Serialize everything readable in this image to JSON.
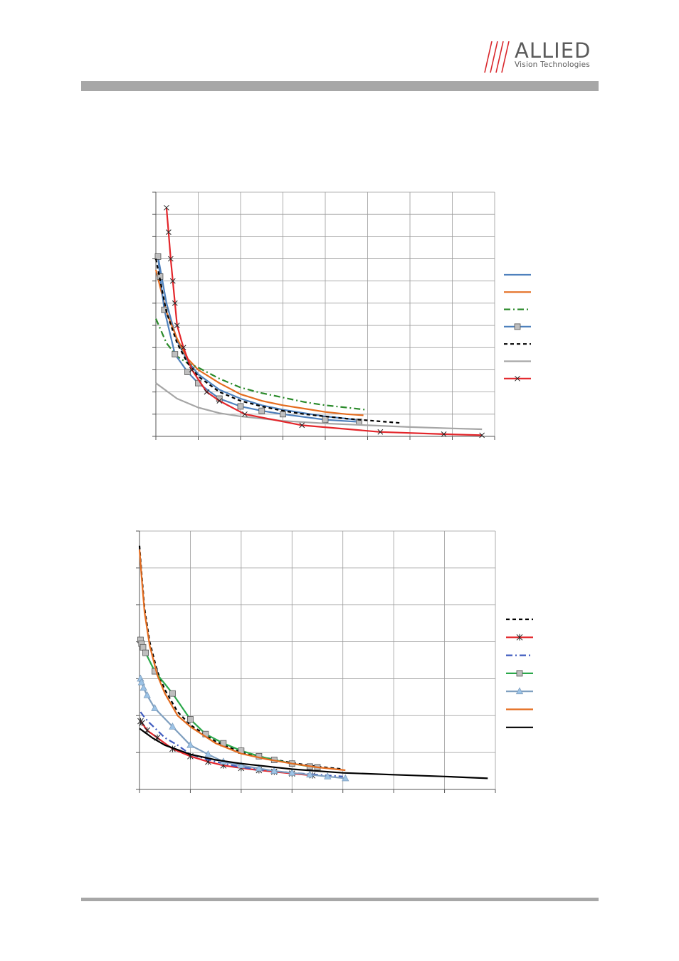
{
  "header": {
    "brand_name": "ALLIED",
    "brand_tagline": "Vision Technologies",
    "colors": {
      "brand_gray": "#5b5b5b",
      "logo_red": "#d9262b",
      "rule_gray": "#a7a7a7"
    }
  },
  "chart_data": [
    {
      "type": "line",
      "grid": true,
      "legend": "right",
      "xlim": [
        0,
        8
      ],
      "ylim": [
        0,
        11
      ],
      "series": [
        {
          "color": "#4f81bd",
          "line": "solid",
          "marker": "none",
          "x": [
            0.05,
            0.25,
            0.5,
            0.75,
            1.0,
            1.5,
            2.0,
            2.5,
            3.0,
            3.5,
            4.0,
            4.5,
            4.85
          ],
          "y": [
            8.1,
            6.0,
            4.3,
            3.4,
            2.8,
            2.1,
            1.7,
            1.4,
            1.2,
            1.05,
            0.9,
            0.8,
            0.72
          ]
        },
        {
          "color": "#e46c1f",
          "line": "solid",
          "marker": "none",
          "x": [
            0.0,
            0.25,
            0.5,
            0.75,
            1.0,
            1.5,
            2.0,
            2.5,
            3.0,
            3.5,
            4.0,
            4.5,
            4.9
          ],
          "y": [
            7.5,
            5.6,
            4.4,
            3.5,
            3.0,
            2.4,
            1.9,
            1.6,
            1.4,
            1.25,
            1.1,
            1.0,
            0.95
          ]
        },
        {
          "color": "#2a8a2a",
          "line": "dashdot",
          "marker": "none",
          "x": [
            0.0,
            0.25,
            0.5,
            0.75,
            1.0,
            1.5,
            2.0,
            2.5,
            3.0,
            3.5,
            4.0,
            4.5,
            4.95
          ],
          "y": [
            5.3,
            4.2,
            3.6,
            3.3,
            3.1,
            2.6,
            2.2,
            1.95,
            1.75,
            1.55,
            1.4,
            1.3,
            1.2
          ]
        },
        {
          "color": "#4f81bd",
          "line": "solid",
          "marker": "square",
          "x": [
            0.05,
            0.1,
            0.2,
            0.45,
            0.75,
            1.0,
            1.5,
            2.0,
            2.5,
            3.0,
            4.0,
            4.8
          ],
          "y": [
            8.1,
            7.2,
            5.7,
            3.7,
            2.9,
            2.4,
            1.7,
            1.35,
            1.15,
            1.0,
            0.75,
            0.65
          ]
        },
        {
          "color": "#000000",
          "line": "dashed",
          "marker": "none",
          "x": [
            0.0,
            0.25,
            0.5,
            0.75,
            1.0,
            1.5,
            2.0,
            2.5,
            3.0,
            3.5,
            4.0,
            4.5,
            5.0,
            5.8
          ],
          "y": [
            8.0,
            5.6,
            4.2,
            3.3,
            2.7,
            2.0,
            1.6,
            1.35,
            1.15,
            1.0,
            0.9,
            0.8,
            0.72,
            0.6
          ]
        },
        {
          "color": "#a6a6a6",
          "line": "solid",
          "marker": "none",
          "x": [
            0.0,
            0.5,
            1.0,
            1.5,
            2.0,
            3.0,
            4.0,
            5.0,
            6.0,
            7.0,
            7.7
          ],
          "y": [
            2.4,
            1.7,
            1.3,
            1.05,
            0.9,
            0.7,
            0.58,
            0.5,
            0.42,
            0.36,
            0.32
          ]
        },
        {
          "color": "#e3262b",
          "line": "solid",
          "marker": "x",
          "x": [
            0.25,
            0.3,
            0.35,
            0.4,
            0.45,
            0.5,
            0.65,
            0.85,
            1.2,
            1.5,
            2.1,
            3.45,
            5.3,
            6.8,
            7.7
          ],
          "y": [
            10.3,
            9.2,
            8.0,
            7.0,
            6.0,
            5.0,
            4.0,
            3.0,
            2.0,
            1.6,
            1.0,
            0.5,
            0.2,
            0.1,
            0.05
          ]
        }
      ]
    },
    {
      "type": "line",
      "grid": true,
      "legend": "right",
      "xlim": [
        0,
        7
      ],
      "ylim": [
        0,
        7
      ],
      "series": [
        {
          "color": "#000000",
          "line": "dashed",
          "marker": "none",
          "x": [
            0.0,
            0.05,
            0.1,
            0.2,
            0.35,
            0.5,
            0.75,
            1.0,
            1.5,
            2.0,
            2.5,
            3.0,
            3.5,
            4.0
          ],
          "y": [
            6.6,
            5.7,
            4.9,
            4.0,
            3.2,
            2.7,
            2.1,
            1.75,
            1.3,
            1.0,
            0.85,
            0.72,
            0.62,
            0.55
          ]
        },
        {
          "color": "#e3262b",
          "line": "solid",
          "marker": "asterisk",
          "x": [
            0.02,
            0.05,
            0.15,
            0.35,
            0.65,
            1.0,
            1.35,
            1.65,
            2.0,
            2.35,
            2.65,
            3.0,
            3.4
          ],
          "y": [
            1.85,
            1.8,
            1.6,
            1.4,
            1.1,
            0.9,
            0.75,
            0.65,
            0.58,
            0.52,
            0.48,
            0.43,
            0.38
          ]
        },
        {
          "color": "#3f5bbf",
          "line": "dashdot",
          "marker": "none",
          "x": [
            0.02,
            0.1,
            0.2,
            0.35,
            0.5,
            0.75,
            1.0,
            1.5,
            2.0,
            2.5,
            3.0,
            3.5,
            4.0
          ],
          "y": [
            2.1,
            1.95,
            1.8,
            1.6,
            1.4,
            1.2,
            0.95,
            0.75,
            0.6,
            0.52,
            0.45,
            0.4,
            0.35
          ]
        },
        {
          "color": "#2aa84a",
          "line": "solid",
          "marker": "square",
          "x": [
            0.02,
            0.04,
            0.07,
            0.12,
            0.3,
            0.65,
            1.0,
            1.3,
            1.65,
            2.0,
            2.35,
            2.65,
            3.0,
            3.35,
            3.5
          ],
          "y": [
            4.05,
            3.95,
            3.85,
            3.7,
            3.2,
            2.6,
            1.9,
            1.5,
            1.25,
            1.05,
            0.9,
            0.8,
            0.7,
            0.62,
            0.6
          ]
        },
        {
          "color": "#7f9fbf",
          "line": "solid",
          "marker": "triangle",
          "x": [
            0.02,
            0.04,
            0.08,
            0.15,
            0.3,
            0.65,
            1.0,
            1.35,
            1.65,
            2.0,
            2.35,
            2.65,
            3.0,
            3.35,
            3.7,
            4.05
          ],
          "y": [
            3.0,
            2.9,
            2.75,
            2.55,
            2.2,
            1.7,
            1.2,
            0.95,
            0.75,
            0.65,
            0.57,
            0.5,
            0.45,
            0.4,
            0.35,
            0.3
          ]
        },
        {
          "color": "#e46c1f",
          "line": "solid",
          "marker": "none",
          "x": [
            0.0,
            0.05,
            0.1,
            0.2,
            0.35,
            0.5,
            0.75,
            1.0,
            1.5,
            2.0,
            2.5,
            3.0,
            3.5,
            4.05
          ],
          "y": [
            6.5,
            5.6,
            4.8,
            3.9,
            3.1,
            2.6,
            2.0,
            1.7,
            1.25,
            0.97,
            0.82,
            0.7,
            0.6,
            0.52
          ]
        },
        {
          "color": "#000000",
          "line": "solid",
          "marker": "none",
          "x": [
            0.0,
            0.25,
            0.5,
            1.0,
            1.5,
            2.0,
            3.0,
            4.0,
            5.0,
            6.0,
            6.85
          ],
          "y": [
            1.65,
            1.4,
            1.2,
            0.95,
            0.8,
            0.7,
            0.55,
            0.45,
            0.4,
            0.35,
            0.3
          ]
        }
      ]
    }
  ]
}
